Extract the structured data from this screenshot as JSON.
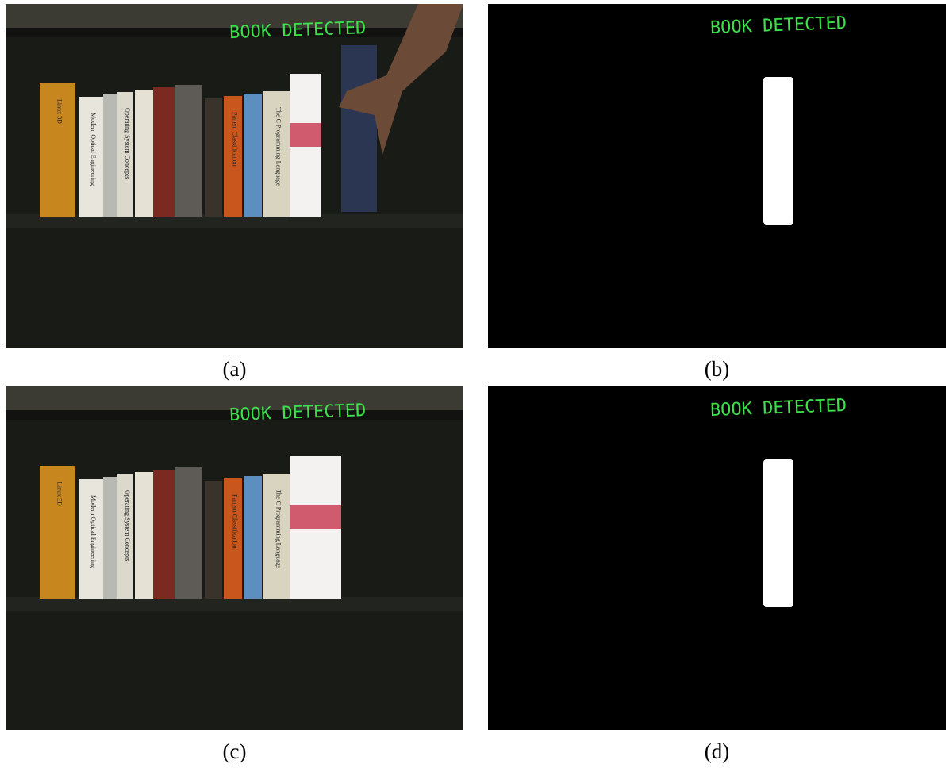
{
  "panels": [
    {
      "overlay": "BOOK DETECTED",
      "caption": "(a)"
    },
    {
      "overlay": "BOOK DETECTED",
      "caption": "(b)"
    },
    {
      "overlay": "BOOK DETECTED",
      "caption": "(c)"
    },
    {
      "overlay": "BOOK DETECTED",
      "caption": "(d)"
    }
  ],
  "book_spines": [
    "Linux 3D",
    "Modern Optical Engineering",
    "Operating System Concepts",
    "Pattern Classification",
    "The C Programming Language"
  ]
}
